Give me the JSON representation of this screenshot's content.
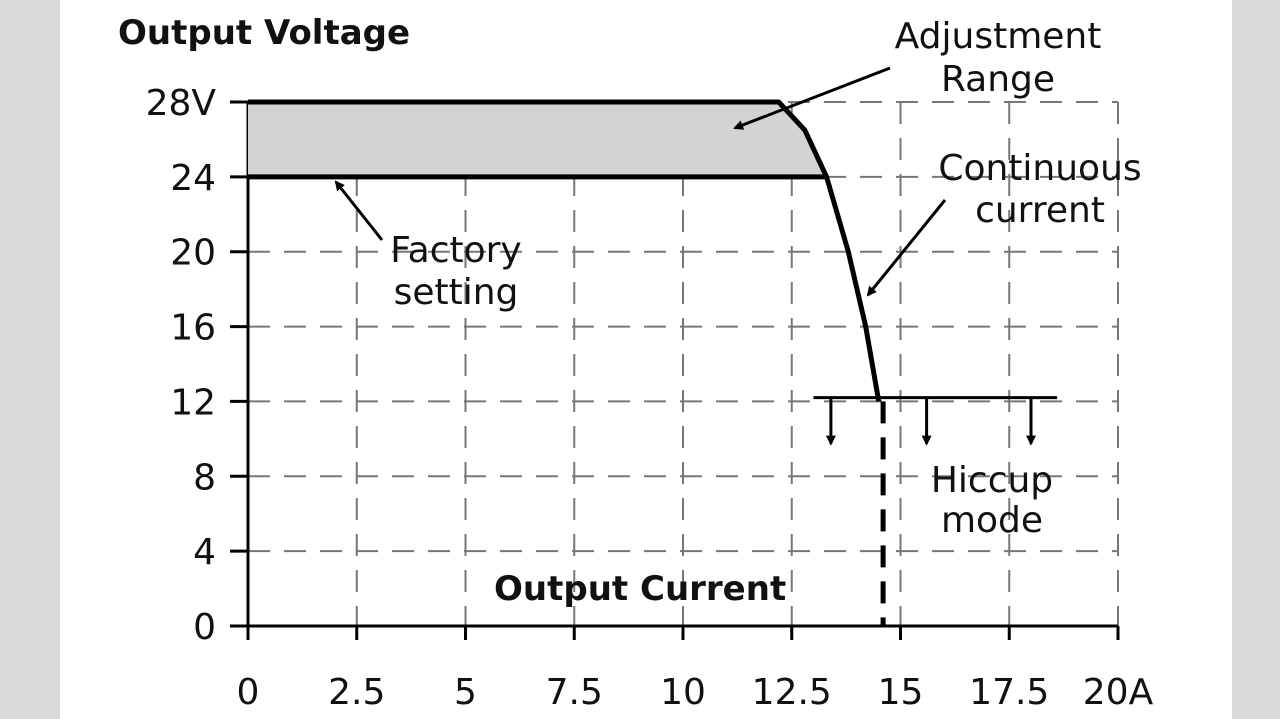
{
  "chart_data": {
    "type": "line",
    "title": "",
    "ylabel": "Output Voltage",
    "xlabel": "Output Current",
    "xlim": [
      0,
      20
    ],
    "ylim": [
      0,
      28
    ],
    "grid": true,
    "grid_style": "dashed",
    "x_ticks": [
      "0",
      "2.5",
      "5",
      "7.5",
      "10",
      "12.5",
      "15",
      "17.5",
      "20A"
    ],
    "x_tick_values": [
      0,
      2.5,
      5,
      7.5,
      10,
      12.5,
      15,
      17.5,
      20
    ],
    "y_ticks": [
      "0",
      "4",
      "8",
      "12",
      "16",
      "20",
      "24",
      "28V"
    ],
    "y_tick_values": [
      0,
      4,
      8,
      12,
      16,
      20,
      24,
      28
    ],
    "adjustment_range": {
      "v_min": 24,
      "v_max": 28,
      "fill": "#d3d3d3"
    },
    "series": [
      {
        "role": "max-setting",
        "x": [
          0,
          12.2,
          12.8,
          13.3,
          13.8,
          14.2,
          14.5
        ],
        "y": [
          28,
          28,
          26.5,
          24,
          20,
          16,
          12
        ]
      },
      {
        "role": "factory-setting",
        "x": [
          0,
          13.3
        ],
        "y": [
          24,
          24
        ]
      },
      {
        "role": "hiccup-level",
        "x": [
          13.0,
          18.6
        ],
        "y": [
          12.2,
          12.2
        ]
      },
      {
        "role": "hiccup-drop",
        "x": [
          14.6,
          14.6
        ],
        "y": [
          12,
          0
        ],
        "style": "dashed"
      }
    ],
    "hiccup_arrows_x": [
      13.4,
      15.6,
      18.0
    ],
    "annotations": {
      "adjustment": [
        "Adjustment",
        "Range"
      ],
      "continuous": [
        "Continuous",
        "current"
      ],
      "factory": [
        "Factory",
        "setting"
      ],
      "hiccup": [
        "Hiccup",
        "mode"
      ]
    },
    "colors": {
      "line": "#000000",
      "grid": "#777777",
      "background": "#ffffff",
      "side": "#d9d9db"
    }
  }
}
